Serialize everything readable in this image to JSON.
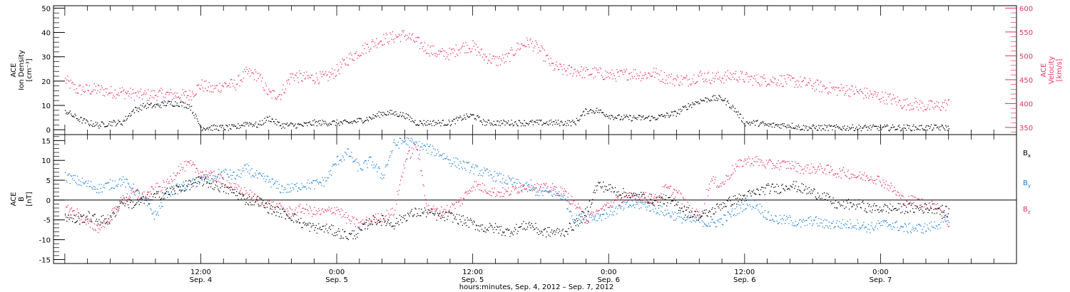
{
  "chart_data": [
    {
      "type": "scatter",
      "panel": "top",
      "ylabel_lines": [
        "ACE",
        "Ion Density",
        "[cm⁻³]"
      ],
      "yticks": [
        "0",
        "10",
        "20",
        "30",
        "40",
        "50"
      ],
      "ylim": [
        -2,
        51
      ],
      "y2label_lines": [
        "ACE",
        "Velocity",
        "[km/s]"
      ],
      "y2ticks": [
        "350",
        "400",
        "450",
        "500",
        "550",
        "600"
      ],
      "y2lim": [
        335,
        605
      ],
      "colors": {
        "density": "#000000",
        "velocity": "#e8325e"
      },
      "series": [
        {
          "axis": "left",
          "x_hours": [
            0,
            1,
            2,
            3,
            4,
            5,
            6,
            7,
            8,
            9,
            10,
            11,
            12,
            13,
            14,
            15,
            16,
            17,
            18,
            19,
            20,
            21,
            22,
            23,
            24,
            25,
            26,
            27,
            28,
            29,
            30,
            31,
            32,
            33,
            34,
            35,
            36,
            37,
            38,
            39,
            40,
            41,
            42,
            43,
            44,
            45,
            46,
            47,
            48,
            49,
            50,
            51,
            52,
            53,
            54,
            55,
            56,
            57,
            58,
            59,
            60,
            61,
            62,
            63,
            64,
            65,
            66,
            67,
            68,
            69,
            70,
            71,
            72,
            73,
            74,
            75,
            76,
            77,
            78
          ],
          "values": [
            8,
            5,
            3,
            2,
            3,
            3,
            8,
            10,
            10,
            11,
            11,
            10,
            1,
            1,
            1,
            1,
            3,
            2,
            5,
            2,
            2,
            2,
            3,
            3,
            3,
            3,
            4,
            5,
            7,
            7,
            6,
            3,
            3,
            3,
            3,
            5,
            6,
            3,
            3,
            3,
            3,
            3,
            3,
            3,
            3,
            3,
            8,
            8,
            6,
            5,
            5,
            5,
            5,
            6,
            7,
            10,
            12,
            13,
            13,
            9,
            3,
            3,
            2,
            2,
            2,
            1,
            1,
            1,
            1,
            1,
            1,
            1,
            1,
            1,
            1,
            1,
            1,
            1,
            1
          ]
        },
        {
          "axis": "right",
          "x_hours": [
            0,
            1,
            2,
            3,
            4,
            5,
            6,
            7,
            8,
            9,
            10,
            11,
            12,
            13,
            14,
            15,
            16,
            17,
            18,
            19,
            20,
            21,
            22,
            23,
            24,
            25,
            26,
            27,
            28,
            29,
            30,
            31,
            32,
            33,
            34,
            35,
            36,
            37,
            38,
            39,
            40,
            41,
            42,
            43,
            44,
            45,
            46,
            47,
            48,
            49,
            50,
            51,
            52,
            53,
            54,
            55,
            56,
            57,
            58,
            59,
            60,
            61,
            62,
            63,
            64,
            65,
            66,
            67,
            68,
            69,
            70,
            71,
            72,
            73,
            74,
            75,
            76,
            77,
            78
          ],
          "values": [
            450,
            430,
            430,
            430,
            425,
            425,
            420,
            418,
            420,
            420,
            418,
            418,
            440,
            430,
            440,
            440,
            465,
            460,
            420,
            420,
            460,
            455,
            455,
            455,
            470,
            495,
            510,
            525,
            535,
            540,
            545,
            530,
            515,
            505,
            505,
            520,
            520,
            500,
            490,
            495,
            520,
            530,
            510,
            480,
            470,
            470,
            465,
            465,
            460,
            460,
            465,
            460,
            465,
            455,
            450,
            450,
            460,
            455,
            455,
            460,
            455,
            450,
            450,
            450,
            448,
            445,
            440,
            435,
            430,
            430,
            425,
            420,
            415,
            410,
            400,
            400,
            395,
            395,
            400
          ]
        }
      ]
    },
    {
      "type": "scatter",
      "panel": "bottom",
      "ylabel_lines": [
        "ACE",
        "B",
        "[nT]"
      ],
      "yticks": [
        "-15",
        "-10",
        "-5",
        "0",
        "5",
        "10",
        "15"
      ],
      "ylim": [
        -16,
        16.5
      ],
      "legend_placement": "right",
      "series": [
        {
          "name_main": "B",
          "name_sub": "x",
          "color": "#000000",
          "x_hours": [
            0,
            1,
            2,
            3,
            4,
            5,
            6,
            7,
            8,
            9,
            10,
            11,
            12,
            13,
            14,
            15,
            16,
            17,
            18,
            19,
            20,
            21,
            22,
            23,
            24,
            25,
            26,
            27,
            28,
            29,
            30,
            31,
            32,
            33,
            34,
            35,
            36,
            37,
            38,
            39,
            40,
            41,
            42,
            43,
            44,
            45,
            46,
            47,
            48,
            49,
            50,
            51,
            52,
            53,
            54,
            55,
            56,
            57,
            58,
            59,
            60,
            61,
            62,
            63,
            64,
            65,
            66,
            67,
            68,
            69,
            70,
            71,
            72,
            73,
            74,
            75,
            76,
            77,
            78
          ],
          "values": [
            -4,
            -5,
            -4,
            -5,
            -5,
            0,
            -1,
            0,
            1,
            2,
            3,
            4,
            5,
            4,
            3,
            2,
            0,
            0,
            -2,
            -3,
            -4,
            -6,
            -7,
            -7,
            -8,
            -9,
            -8,
            -5,
            -5,
            -6,
            -4,
            -3,
            -3,
            -4,
            -4,
            -5,
            -6,
            -7,
            -7,
            -8,
            -7,
            -6,
            -8,
            -8,
            -8,
            -6,
            -3,
            4,
            3,
            2,
            1,
            1,
            0,
            0,
            -1,
            -3,
            -4,
            -3,
            -1,
            0,
            1,
            2,
            3,
            3,
            4,
            3,
            2,
            1,
            -1,
            -1,
            -1,
            -2,
            -2,
            -2,
            -2,
            -2,
            -2,
            -2,
            -3
          ]
        },
        {
          "name_main": "B",
          "name_sub": "y",
          "color": "#1a7fe0",
          "x_hours": [
            0,
            1,
            2,
            3,
            4,
            5,
            6,
            7,
            8,
            9,
            10,
            11,
            12,
            13,
            14,
            15,
            16,
            17,
            18,
            19,
            20,
            21,
            22,
            23,
            24,
            25,
            26,
            27,
            28,
            29,
            30,
            31,
            32,
            33,
            34,
            35,
            36,
            37,
            38,
            39,
            40,
            41,
            42,
            43,
            44,
            45,
            46,
            47,
            48,
            49,
            50,
            51,
            52,
            53,
            54,
            55,
            56,
            57,
            58,
            59,
            60,
            61,
            62,
            63,
            64,
            65,
            66,
            67,
            68,
            69,
            70,
            71,
            72,
            73,
            74,
            75,
            76,
            77,
            78
          ],
          "values": [
            6,
            5,
            4,
            3,
            4,
            5,
            3,
            0,
            -4,
            2,
            3,
            4,
            5,
            6,
            7,
            6,
            8,
            6,
            5,
            3,
            3,
            4,
            4,
            5,
            10,
            12,
            8,
            10,
            6,
            14,
            15,
            14,
            13,
            12,
            10,
            9,
            8,
            7,
            6,
            5,
            4,
            3,
            2,
            2,
            1,
            -5,
            -4,
            -4,
            -3,
            -2,
            -1,
            -1,
            -2,
            -3,
            -4,
            -5,
            -5,
            -6,
            -5,
            -3,
            -1,
            -1,
            -4,
            -5,
            -5,
            -6,
            -5,
            -6,
            -6,
            -6,
            -6,
            -7,
            -6,
            -6,
            -7,
            -7,
            -7,
            -6,
            -5
          ]
        },
        {
          "name_main": "B",
          "name_sub": "z",
          "color": "#e8325e",
          "x_hours": [
            0,
            1,
            2,
            3,
            4,
            5,
            6,
            7,
            8,
            9,
            10,
            11,
            12,
            13,
            14,
            15,
            16,
            17,
            18,
            19,
            20,
            21,
            22,
            23,
            24,
            25,
            26,
            27,
            28,
            29,
            30,
            31,
            32,
            33,
            34,
            35,
            36,
            37,
            38,
            39,
            40,
            41,
            42,
            43,
            44,
            45,
            46,
            47,
            48,
            49,
            50,
            51,
            52,
            53,
            54,
            55,
            56,
            57,
            58,
            59,
            60,
            61,
            62,
            63,
            64,
            65,
            66,
            67,
            68,
            69,
            70,
            71,
            72,
            73,
            74,
            75,
            76,
            77,
            78
          ],
          "values": [
            -2,
            -3,
            -6,
            -7,
            -4,
            0,
            2,
            1,
            3,
            4,
            8,
            9,
            7,
            6,
            5,
            3,
            2,
            0,
            -1,
            -2,
            -3,
            -2,
            -3,
            -3,
            -2,
            -5,
            -6,
            -5,
            -4,
            -3,
            10,
            14,
            -2,
            -3,
            -2,
            0,
            4,
            3,
            2,
            2,
            3,
            4,
            3,
            3,
            2,
            -1,
            -5,
            -3,
            -1,
            0,
            1,
            1,
            0,
            3,
            2,
            -2,
            -4,
            5,
            4,
            8,
            10,
            10,
            9,
            9,
            9,
            8,
            8,
            8,
            7,
            7,
            6,
            6,
            5,
            3,
            0,
            0,
            -1,
            -1,
            -6
          ]
        }
      ]
    }
  ],
  "xaxis": {
    "ticks": [
      {
        "hour": 12,
        "time": "12:00",
        "date": "Sep. 4"
      },
      {
        "hour": 24,
        "time": "0:00",
        "date": "Sep. 5"
      },
      {
        "hour": 36,
        "time": "12:00",
        "date": "Sep. 5"
      },
      {
        "hour": 48,
        "time": "0:00",
        "date": "Sep. 6"
      },
      {
        "hour": 60,
        "time": "12:00",
        "date": "Sep. 6"
      },
      {
        "hour": 72,
        "time": "0:00",
        "date": "Sep. 7"
      }
    ],
    "xlim_hours": [
      -1.0,
      84.0
    ],
    "xlabel": "hours:minutes, Sep.  4, 2012 – Sep.  7, 2012"
  }
}
